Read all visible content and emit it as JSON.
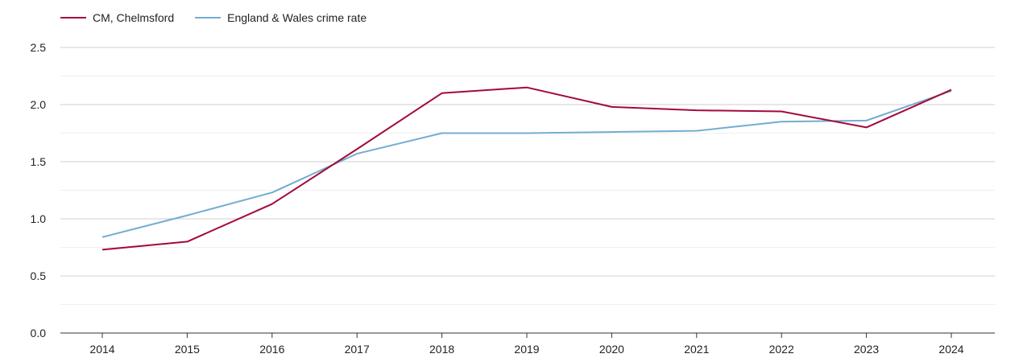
{
  "chart_data": {
    "type": "line",
    "categories": [
      "2014",
      "2015",
      "2016",
      "2017",
      "2018",
      "2019",
      "2020",
      "2021",
      "2022",
      "2023",
      "2024"
    ],
    "series": [
      {
        "name": "CM, Chelmsford",
        "color": "#a3093a",
        "values": [
          0.73,
          0.8,
          1.13,
          1.61,
          2.1,
          2.15,
          1.98,
          1.95,
          1.94,
          1.8,
          2.13
        ]
      },
      {
        "name": "England & Wales crime rate",
        "color": "#74acd0",
        "values": [
          0.84,
          1.03,
          1.23,
          1.57,
          1.75,
          1.75,
          1.76,
          1.77,
          1.85,
          1.86,
          2.12
        ]
      }
    ],
    "y_ticks": [
      "0.0",
      "0.5",
      "1.0",
      "1.5",
      "2.0",
      "2.5"
    ],
    "ylim": [
      0,
      2.5
    ],
    "grid": true,
    "legend_position": "top-left",
    "title": "",
    "xlabel": "",
    "ylabel": ""
  }
}
